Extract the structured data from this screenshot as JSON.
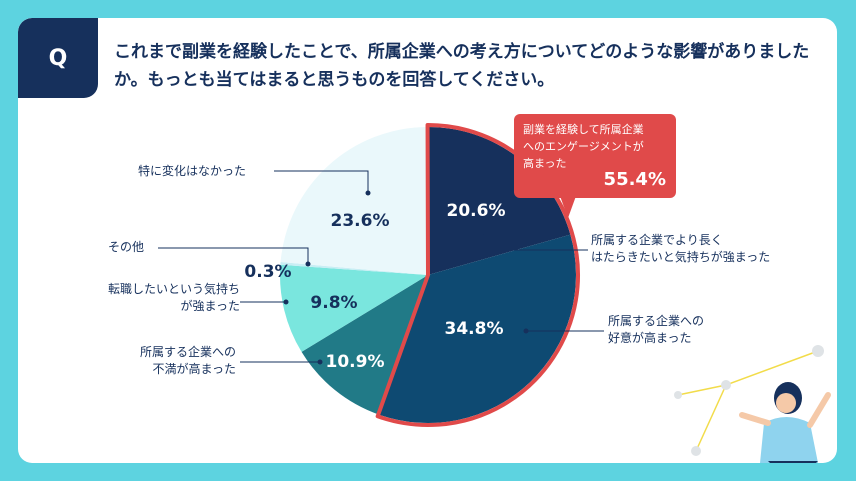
{
  "badge": "Q",
  "question": "これまで副業を経験したことで、所属企業への考え方についてどのような影響がありましたか。もっとも当てはまると思うものを回答してください。",
  "callout": {
    "label_lines": [
      "副業を経験して所属企業",
      "へのエンゲージメントが",
      "高まった"
    ],
    "value": "55.4%",
    "color": "#e04a4a"
  },
  "colors": {
    "background": "#5dd3e0",
    "navy": "#16305c",
    "text": "#16305c",
    "highlight_border": "#e04a4a"
  },
  "chart_data": {
    "type": "pie",
    "unit": "%",
    "slices": [
      {
        "label": "所属する企業でより長くはたらきたいと気持ちが強まった",
        "label_lines": [
          "所属する企業でより長く",
          "はたらきたいと気持ちが強まった"
        ],
        "value": 20.6,
        "display": "20.6%",
        "color": "#16305c"
      },
      {
        "label": "所属する企業への好意が高まった",
        "label_lines": [
          "所属する企業への",
          "好意が高まった"
        ],
        "value": 34.8,
        "display": "34.8%",
        "color": "#0e4a72"
      },
      {
        "label": "所属する企業への不満が高まった",
        "label_lines": [
          "所属する企業への",
          "不満が高まった"
        ],
        "value": 10.9,
        "display": "10.9%",
        "color": "#217a87"
      },
      {
        "label": "転職したいという気持ちが強まった",
        "label_lines": [
          "転職したいという気持ち",
          "が強まった"
        ],
        "value": 9.8,
        "display": "9.8%",
        "color": "#7ae6de"
      },
      {
        "label": "その他",
        "label_lines": [
          "その他"
        ],
        "value": 0.3,
        "display": "0.3%",
        "color": "#c8eef4"
      },
      {
        "label": "特に変化はなかった",
        "label_lines": [
          "特に変化はなかった"
        ],
        "value": 23.6,
        "display": "23.6%",
        "color": "#eaf8fb"
      }
    ],
    "highlighted_group": [
      "所属する企業でより長くはたらきたいと気持ちが強まった",
      "所属する企業への好意が高まった"
    ]
  }
}
